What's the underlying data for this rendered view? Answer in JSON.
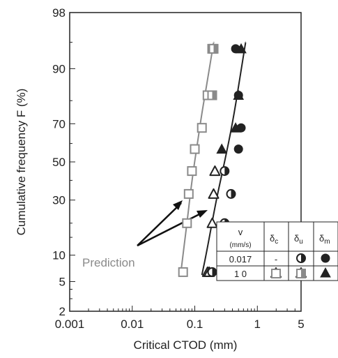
{
  "chart_data": {
    "type": "scatter",
    "title": "",
    "xlabel": "Critical CTOD  (mm)",
    "ylabel": "Cumulative frequency F  (%)",
    "x_scale": "log",
    "y_scale": "probability",
    "xlim": [
      0.001,
      5
    ],
    "ylim": [
      2,
      98
    ],
    "x_ticks": [
      {
        "v": 0.001,
        "label": "0.001"
      },
      {
        "v": 0.01,
        "label": "0.01"
      },
      {
        "v": 0.1,
        "label": "0.1"
      },
      {
        "v": 1,
        "label": "1"
      },
      {
        "v": 5,
        "label": "5"
      }
    ],
    "y_ticks": [
      {
        "v": 2,
        "label": "2"
      },
      {
        "v": 5,
        "label": "5"
      },
      {
        "v": 10,
        "label": "10"
      },
      {
        "v": 30,
        "label": "30"
      },
      {
        "v": 50,
        "label": "50"
      },
      {
        "v": 70,
        "label": "70"
      },
      {
        "v": 90,
        "label": "90"
      },
      {
        "v": 98,
        "label": "98"
      }
    ],
    "colors": {
      "dark": "#222222",
      "gray": "#8a8a8a"
    },
    "series": [
      {
        "name": "v=10, δc",
        "marker": "square-open",
        "color": "gray",
        "points": [
          [
            0.065,
            6.5
          ],
          [
            0.075,
            20
          ],
          [
            0.08,
            33
          ],
          [
            0.09,
            45
          ],
          [
            0.1,
            57
          ],
          [
            0.13,
            68
          ],
          [
            0.16,
            82
          ],
          [
            0.19,
            94
          ]
        ]
      },
      {
        "name": "v=10, δu",
        "marker": "square-half",
        "color": "gray",
        "points": [
          [
            0.19,
            82
          ],
          [
            0.2,
            94
          ]
        ]
      },
      {
        "name": "v=10, δc",
        "marker": "triangle-open",
        "color": "dark",
        "points": [
          [
            0.16,
            6.5
          ],
          [
            0.19,
            20
          ],
          [
            0.2,
            33
          ],
          [
            0.21,
            45
          ]
        ]
      },
      {
        "name": "v=10, δu",
        "marker": "triangle-half",
        "color": "dark",
        "points": [
          [
            0.17,
            6.5
          ]
        ]
      },
      {
        "name": "v=10, δm",
        "marker": "triangle-filled",
        "color": "dark",
        "points": [
          [
            0.27,
            57
          ],
          [
            0.45,
            68
          ],
          [
            0.5,
            82
          ],
          [
            0.55,
            94
          ]
        ]
      },
      {
        "name": "v=0.017, δu",
        "marker": "circle-half",
        "color": "dark",
        "points": [
          [
            0.19,
            6.5
          ],
          [
            0.3,
            20
          ],
          [
            0.38,
            33
          ],
          [
            0.3,
            45
          ]
        ]
      },
      {
        "name": "v=0.017, δm",
        "marker": "circle-filled",
        "color": "dark",
        "points": [
          [
            0.5,
            57
          ],
          [
            0.55,
            68
          ],
          [
            0.5,
            82
          ],
          [
            0.45,
            94
          ]
        ]
      }
    ],
    "prediction_curves": [
      {
        "color": "gray",
        "points": [
          [
            0.06,
            6.5
          ],
          [
            0.075,
            20
          ],
          [
            0.09,
            40
          ],
          [
            0.11,
            60
          ],
          [
            0.13,
            75
          ],
          [
            0.16,
            87
          ],
          [
            0.2,
            95
          ]
        ]
      },
      {
        "color": "dark",
        "points": [
          [
            0.13,
            6
          ],
          [
            0.16,
            12
          ],
          [
            0.22,
            30
          ],
          [
            0.3,
            50
          ],
          [
            0.4,
            70
          ],
          [
            0.52,
            87
          ],
          [
            0.65,
            95
          ]
        ]
      }
    ],
    "annotation": {
      "text": "Prediction"
    },
    "legend": {
      "position": "bottom-right",
      "header": {
        "v": "v",
        "v_unit": "(mm/s)",
        "c": "c",
        "u": "u",
        "m": "m",
        "delta": "δ"
      },
      "rows": [
        {
          "v": "0.017",
          "c": "-",
          "u": "circle-half",
          "m": "circle-filled"
        },
        {
          "v": "1 0",
          "c": "triangle-open",
          "u": "triangle-half",
          "m": "triangle-filled"
        },
        {
          "v": "",
          "c": "square-open",
          "u": "square-half",
          "m": ""
        }
      ]
    }
  }
}
